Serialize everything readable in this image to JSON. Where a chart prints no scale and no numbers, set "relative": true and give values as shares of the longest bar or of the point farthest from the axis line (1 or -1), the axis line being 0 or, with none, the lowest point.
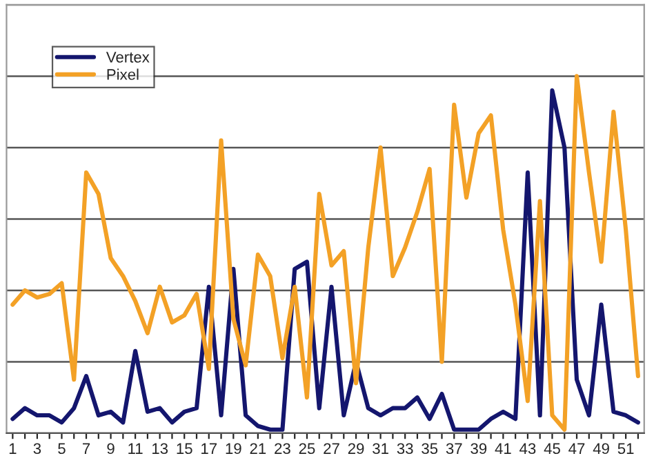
{
  "chart_data": {
    "type": "line",
    "relative": true,
    "grid": "y",
    "legend": "top left",
    "marker": "none",
    "line_style": "solid",
    "tick_labels": "x",
    "categories": [
      "1",
      null,
      "3",
      null,
      "5",
      null,
      "7",
      null,
      "9",
      null,
      "11",
      null,
      "13",
      null,
      "15",
      null,
      "17",
      null,
      "19",
      null,
      "21",
      null,
      "23",
      null,
      "25",
      null,
      "27",
      null,
      "29",
      null,
      "31",
      null,
      "33",
      null,
      "35",
      null,
      "37",
      null,
      "39",
      null,
      "41",
      null,
      "43",
      null,
      "45",
      null,
      "47",
      null,
      "49",
      null,
      "51",
      null
    ],
    "series": [
      {
        "name": "Vertex",
        "color": "#14166e",
        "values": [
          0.04,
          0.07,
          0.05,
          0.05,
          0.03,
          0.07,
          0.16,
          0.05,
          0.06,
          0.03,
          0.23,
          0.06,
          0.07,
          0.03,
          0.06,
          0.07,
          0.41,
          0.05,
          0.46,
          0.05,
          0.02,
          0.01,
          0.01,
          0.46,
          0.48,
          0.07,
          0.41,
          0.05,
          0.2,
          0.07,
          0.05,
          0.07,
          0.07,
          0.1,
          0.04,
          0.11,
          0.01,
          0.01,
          0.01,
          0.04,
          0.06,
          0.04,
          0.73,
          0.05,
          0.96,
          0.8,
          0.15,
          0.05,
          0.36,
          0.06,
          0.05,
          0.03
        ]
      },
      {
        "name": "Pixel",
        "color": "#f3a126",
        "values": [
          0.36,
          0.4,
          0.38,
          0.39,
          0.42,
          0.15,
          0.73,
          0.67,
          0.49,
          0.44,
          0.37,
          0.28,
          0.41,
          0.31,
          0.33,
          0.39,
          0.18,
          0.82,
          0.32,
          0.19,
          0.5,
          0.44,
          0.21,
          0.41,
          0.1,
          0.67,
          0.47,
          0.51,
          0.14,
          0.52,
          0.8,
          0.44,
          0.52,
          0.62,
          0.74,
          0.2,
          0.92,
          0.66,
          0.84,
          0.89,
          0.57,
          0.36,
          0.09,
          0.65,
          0.05,
          0.01,
          1.0,
          0.73,
          0.48,
          0.9,
          0.57,
          0.16
        ]
      }
    ]
  }
}
